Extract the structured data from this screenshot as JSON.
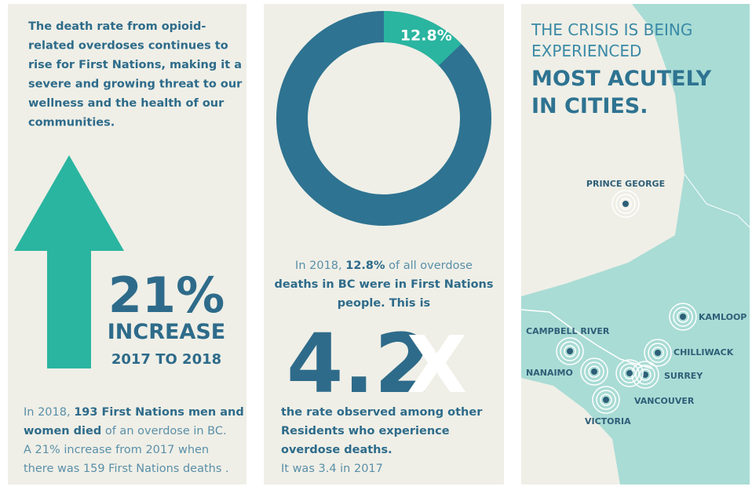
{
  "panels": [
    {
      "intro": [
        "The death rate from opioid-",
        "related overdoses continues to",
        "rise for First Nations, making it a",
        "severe and growing threat to our",
        "wellness and the health of our",
        "communities."
      ],
      "stat": "21%",
      "stat_label": "INCREASE",
      "stat_period": "2017 TO 2018",
      "detail": [
        [
          {
            "text": "In 2018, ",
            "bold": false
          },
          {
            "text": "193 First Nations men and",
            "bold": true
          }
        ],
        [
          {
            "text": "women died",
            "bold": true
          },
          {
            "text": " of an overdose in BC.",
            "bold": false
          }
        ],
        [
          {
            "text": "A 21% increase from 2017 when",
            "bold": false
          }
        ],
        [
          {
            "text": "there was 159 First Nations deaths .",
            "bold": false
          }
        ]
      ]
    },
    {
      "donut": {
        "value": 12.8,
        "label": "12.8%"
      },
      "detail": [
        [
          {
            "text": "In 2018, ",
            "bold": false
          },
          {
            "text": "12.8%",
            "bold": true
          },
          {
            "text": " of all overdose",
            "bold": false
          }
        ],
        [
          {
            "text": "deaths in BC were in First Nations",
            "bold": true
          }
        ],
        [
          {
            "text": "people. This is",
            "bold": true
          }
        ]
      ],
      "multiplier": "4.2",
      "multiplier_sign": "X",
      "footer": [
        [
          {
            "text": "the rate observed among other",
            "bold": true
          }
        ],
        [
          {
            "text": "Residents who experience",
            "bold": true
          }
        ],
        [
          {
            "text": "overdose deaths.",
            "bold": true
          }
        ],
        [
          {
            "text": "It was 3.4 in 2017",
            "bold": false
          }
        ]
      ]
    },
    {
      "heading_light": [
        "THE CRISIS IS BEING",
        "EXPERIENCED"
      ],
      "heading_bold": [
        "MOST ACUTELY",
        "IN CITIES."
      ],
      "cities": [
        "PRINCE GEORGE",
        "KAMLOOP",
        "CAMPBELL RIVER",
        "CHILLIWACK",
        "NANAIMO",
        "SURREY",
        "VANCOUVER",
        "VICTORIA"
      ]
    }
  ]
}
